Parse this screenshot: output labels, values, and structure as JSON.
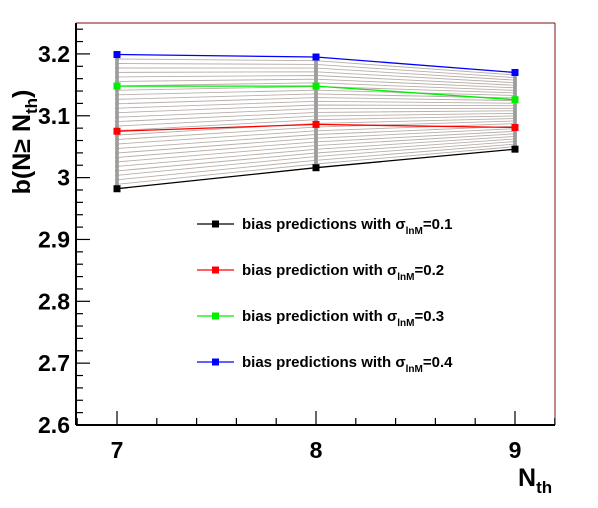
{
  "chart_data": {
    "type": "line",
    "xlabel": "N",
    "xlabel_sub": "th",
    "ylabel_parts": [
      "b(N",
      "≥",
      " N",
      "th",
      ")"
    ],
    "x": [
      7,
      8,
      9
    ],
    "xlim": [
      6.8,
      9.2
    ],
    "ylim": [
      2.6,
      3.25
    ],
    "x_ticks": [
      7,
      8,
      9
    ],
    "x_tick_labels": [
      "7",
      "8",
      "9"
    ],
    "y_ticks": [
      2.6,
      2.7,
      2.8,
      2.9,
      3.0,
      3.1,
      3.2
    ],
    "y_tick_labels": [
      "2.6",
      "2.7",
      "2.8",
      "2.9",
      "3",
      "3.1",
      "3.2"
    ],
    "grid": false,
    "legend_position": "right-center",
    "series": [
      {
        "name": "bias predictions with σlnM=0.1",
        "color": "#000000",
        "values": [
          2.982,
          3.016,
          3.046
        ]
      },
      {
        "name": "bias prediction with σlnM=0.2",
        "color": "#ff0000",
        "values": [
          3.075,
          3.086,
          3.081
        ]
      },
      {
        "name": "bias prediction with σlnM=0.3",
        "color": "#00ee00",
        "values": [
          3.148,
          3.148,
          3.126
        ]
      },
      {
        "name": "bias predictions with σlnM=0.4",
        "color": "#0000ff",
        "values": [
          3.199,
          3.195,
          3.17
        ]
      }
    ],
    "intermediate_lines": {
      "color": "#b8aea8",
      "count": 30
    }
  },
  "legend": [
    {
      "prefix": "bias predictions with σ",
      "sub": "lnM",
      "suffix": "=0.1",
      "color": "#000000"
    },
    {
      "prefix": "bias prediction with σ",
      "sub": "lnM",
      "suffix": "=0.2",
      "color": "#ff0000"
    },
    {
      "prefix": "bias prediction with σ",
      "sub": "lnM",
      "suffix": "=0.3",
      "color": "#00ee00"
    },
    {
      "prefix": "bias predictions with σ",
      "sub": "lnM",
      "suffix": "=0.4",
      "color": "#0000ff"
    }
  ],
  "frame_colors": {
    "axes": "#000000",
    "frame_right": "#7a1010"
  }
}
